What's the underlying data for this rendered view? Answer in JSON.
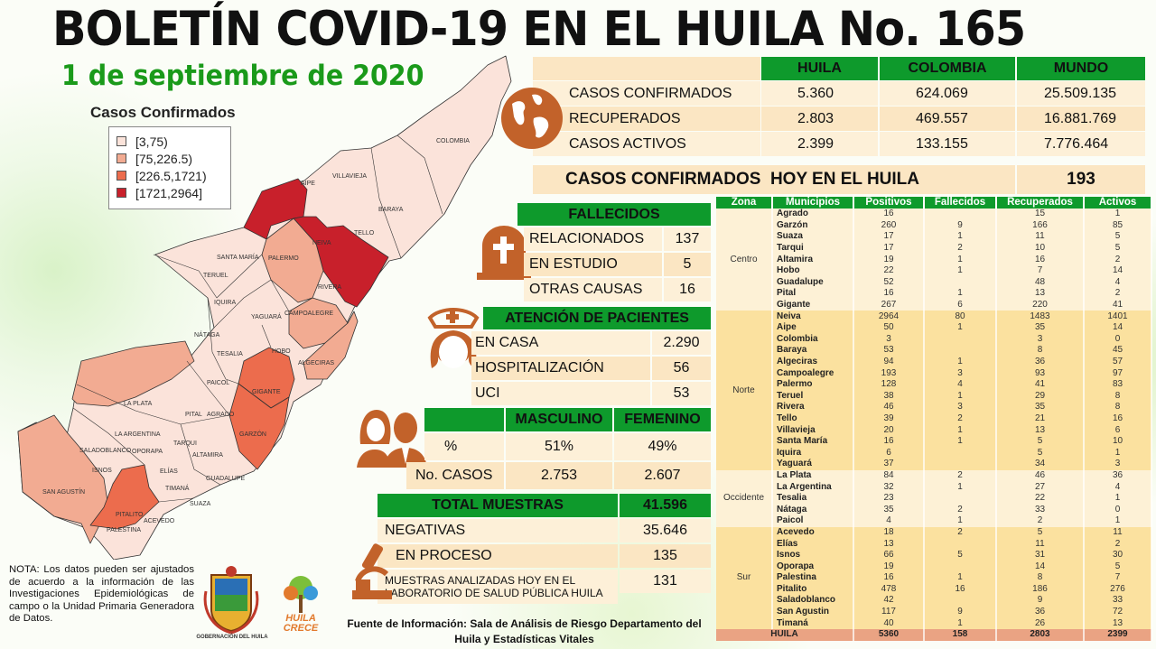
{
  "header": {
    "title": "BOLETÍN COVID-19 EN EL HUILA No. 165",
    "date": "1 de septiembre de 2020"
  },
  "map": {
    "title": "Casos Confirmados",
    "legend": [
      {
        "label": "[3,75)",
        "color": "#fbe3da"
      },
      {
        "label": "[75,226.5)",
        "color": "#f2ab92"
      },
      {
        "label": "[226.5,1721)",
        "color": "#ec6c4d"
      },
      {
        "label": "[1721,2964]",
        "color": "#c8202b"
      }
    ],
    "labels": [
      "COLOMBIA",
      "VILLAVIEJA",
      "AIPE",
      "BARAYA",
      "TELLO",
      "NEIVA",
      "SANTA MARÍA",
      "PALERMO",
      "TERUEL",
      "RIVERA",
      "IQUIRA",
      "YAGUARÁ",
      "CAMPOALEGRE",
      "NÁTAGA",
      "TESALIA",
      "HOBO",
      "ALGECIRAS",
      "PAICOL",
      "GIGANTE",
      "LA PLATA",
      "PITAL",
      "AGRADO",
      "GARZÓN",
      "LA ARGENTINA",
      "TARQUI",
      "SALADOBLANCO",
      "OPORAPA",
      "ALTAMIRA",
      "ISNOS",
      "ELÍAS",
      "GUADALUPE",
      "TIMANÁ",
      "SAN AGUSTÍN",
      "SUAZA",
      "PITALITO",
      "ACEVEDO",
      "PALESTINA"
    ]
  },
  "summary": {
    "headers": [
      "HUILA",
      "COLOMBIA",
      "MUNDO"
    ],
    "rows": [
      {
        "label": "CASOS CONFIRMADOS",
        "values": [
          "5.360",
          "624.069",
          "25.509.135"
        ]
      },
      {
        "label": "RECUPERADOS",
        "values": [
          "2.803",
          "469.557",
          "16.881.769"
        ]
      },
      {
        "label": "CASOS ACTIVOS",
        "values": [
          "2.399",
          "133.155",
          "7.776.464"
        ]
      }
    ],
    "today_label": "CASOS CONFIRMADOS  HOY EN EL HUILA",
    "today_value": "193"
  },
  "fallecidos": {
    "title": "FALLECIDOS",
    "rows": [
      {
        "label": "RELACIONADOS",
        "value": "137"
      },
      {
        "label": "EN ESTUDIO",
        "value": "5"
      },
      {
        "label": "OTRAS CAUSAS",
        "value": "16"
      }
    ]
  },
  "atencion": {
    "title": "ATENCIÓN DE PACIENTES",
    "rows": [
      {
        "label": "EN CASA",
        "value": "2.290"
      },
      {
        "label": "HOSPITALIZACIÓN",
        "value": "56"
      },
      {
        "label": "UCI",
        "value": "53"
      }
    ]
  },
  "genero": {
    "headers": [
      "MASCULINO",
      "FEMENINO"
    ],
    "rows": [
      {
        "label": "%",
        "values": [
          "51%",
          "49%"
        ]
      },
      {
        "label": "No. CASOS",
        "values": [
          "2.753",
          "2.607"
        ]
      }
    ]
  },
  "muestras": {
    "title": "TOTAL MUESTRAS",
    "total": "41.596",
    "rows": [
      {
        "label": "NEGATIVAS",
        "value": "35.646"
      },
      {
        "label": "EN PROCESO",
        "value": "135"
      },
      {
        "label": "MUESTRAS ANALIZADAS HOY EN EL LABORATORIO  DE SALUD PÚBLICA HUILA",
        "value": "131"
      }
    ]
  },
  "municipios": {
    "headers": [
      "Zona",
      "Municipios",
      "Positivos",
      "Fallecidos",
      "Recuperados",
      "Activos"
    ],
    "zones": [
      {
        "zona": "Centro",
        "rows": [
          [
            "Agrado",
            "16",
            "",
            "15",
            "1"
          ],
          [
            "Garzón",
            "260",
            "9",
            "166",
            "85"
          ],
          [
            "Suaza",
            "17",
            "1",
            "11",
            "5"
          ],
          [
            "Tarqui",
            "17",
            "2",
            "10",
            "5"
          ],
          [
            "Altamira",
            "19",
            "1",
            "16",
            "2"
          ],
          [
            "Hobo",
            "22",
            "1",
            "7",
            "14"
          ],
          [
            "Guadalupe",
            "52",
            "",
            "48",
            "4"
          ],
          [
            "Pital",
            "16",
            "1",
            "13",
            "2"
          ],
          [
            "Gigante",
            "267",
            "6",
            "220",
            "41"
          ]
        ]
      },
      {
        "zona": "Norte",
        "rows": [
          [
            "Neiva",
            "2964",
            "80",
            "1483",
            "1401"
          ],
          [
            "Aipe",
            "50",
            "1",
            "35",
            "14"
          ],
          [
            "Colombia",
            "3",
            "",
            "3",
            "0"
          ],
          [
            "Baraya",
            "53",
            "",
            "8",
            "45"
          ],
          [
            "Algeciras",
            "94",
            "1",
            "36",
            "57"
          ],
          [
            "Campoalegre",
            "193",
            "3",
            "93",
            "97"
          ],
          [
            "Palermo",
            "128",
            "4",
            "41",
            "83"
          ],
          [
            "Teruel",
            "38",
            "1",
            "29",
            "8"
          ],
          [
            "Rivera",
            "46",
            "3",
            "35",
            "8"
          ],
          [
            "Tello",
            "39",
            "2",
            "21",
            "16"
          ],
          [
            "Villavieja",
            "20",
            "1",
            "13",
            "6"
          ],
          [
            "Santa María",
            "16",
            "1",
            "5",
            "10"
          ],
          [
            "Iquira",
            "6",
            "",
            "5",
            "1"
          ],
          [
            "Yaguará",
            "37",
            "",
            "34",
            "3"
          ]
        ]
      },
      {
        "zona": "Occidente",
        "rows": [
          [
            "La Plata",
            "84",
            "2",
            "46",
            "36"
          ],
          [
            "La Argentina",
            "32",
            "1",
            "27",
            "4"
          ],
          [
            "Tesalia",
            "23",
            "",
            "22",
            "1"
          ],
          [
            "Nátaga",
            "35",
            "2",
            "33",
            "0"
          ],
          [
            "Paicol",
            "4",
            "1",
            "2",
            "1"
          ]
        ]
      },
      {
        "zona": "Sur",
        "rows": [
          [
            "Acevedo",
            "18",
            "2",
            "5",
            "11"
          ],
          [
            "Elías",
            "13",
            "",
            "11",
            "2"
          ],
          [
            "Isnos",
            "66",
            "5",
            "31",
            "30"
          ],
          [
            "Oporapa",
            "19",
            "",
            "14",
            "5"
          ],
          [
            "Palestina",
            "16",
            "1",
            "8",
            "7"
          ],
          [
            "Pitalito",
            "478",
            "16",
            "186",
            "276"
          ],
          [
            "Saladoblanco",
            "42",
            "",
            "9",
            "33"
          ],
          [
            "San Agustin",
            "117",
            "9",
            "36",
            "72"
          ],
          [
            "Timaná",
            "40",
            "1",
            "26",
            "13"
          ]
        ]
      }
    ],
    "total": {
      "label": "HUILA",
      "values": [
        "5360",
        "158",
        "2803",
        "2399"
      ]
    }
  },
  "footer": {
    "note": "NOTA: Los datos pueden ser ajustados de acuerdo a la información de las Investigaciones Epidemiológicas de campo o la Unidad Primaria Generadora de Datos.",
    "source": "Fuente de Información:  Sala de Análisis de Riesgo Departamento del Huila y Estadísticas Vitales",
    "logo1": "GOBERNACIÓN DEL HUILA",
    "logo2": "HUILA CRECE"
  },
  "colors": {
    "green": "#0e9a2c",
    "brown": "#c2622a",
    "total_row": "#eaa383"
  }
}
